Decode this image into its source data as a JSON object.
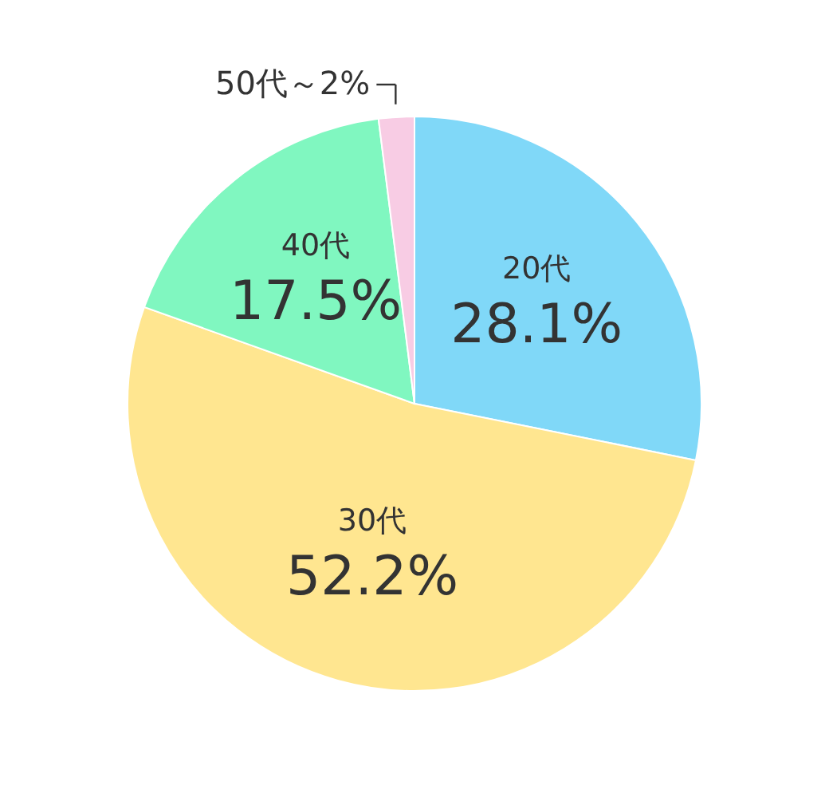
{
  "chart_data": {
    "type": "pie",
    "categories": [
      "20代",
      "30代",
      "40代",
      "50代～"
    ],
    "values": [
      28.1,
      52.2,
      17.5,
      2
    ],
    "colors": [
      "#80d8f8",
      "#ffe690",
      "#80f7c0",
      "#f8cce4"
    ],
    "value_labels": [
      "28.1%",
      "52.2%",
      "17.5%",
      "2%"
    ]
  }
}
